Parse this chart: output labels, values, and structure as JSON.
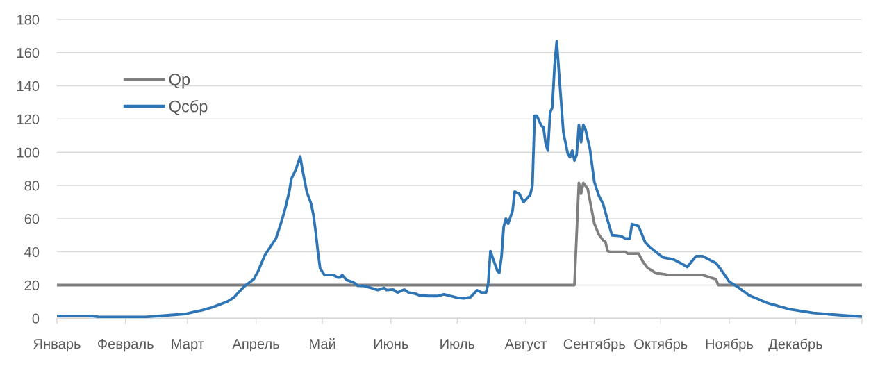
{
  "chart_data": {
    "type": "line",
    "categories": [
      "Январь",
      null,
      null,
      null,
      null,
      null,
      null,
      null,
      null,
      null,
      null,
      null,
      null,
      null,
      null,
      null,
      null,
      null,
      null,
      null,
      null,
      null,
      null,
      null,
      null,
      null,
      null,
      null,
      null,
      null,
      null,
      "Февраль",
      null,
      null,
      null,
      null,
      null,
      null,
      null,
      null,
      null,
      null,
      null,
      null,
      null,
      null,
      null,
      null,
      null,
      null,
      null,
      null,
      null,
      null,
      null,
      null,
      null,
      null,
      null,
      "Март",
      null,
      null,
      null,
      null,
      null,
      null,
      null,
      null,
      null,
      null,
      null,
      null,
      null,
      null,
      null,
      null,
      null,
      null,
      null,
      null,
      null,
      null,
      null,
      null,
      null,
      null,
      null,
      null,
      null,
      null,
      "Апрель",
      null,
      null,
      null,
      null,
      null,
      null,
      null,
      null,
      null,
      null,
      null,
      null,
      null,
      null,
      null,
      null,
      null,
      null,
      null,
      null,
      null,
      null,
      null,
      null,
      null,
      null,
      null,
      null,
      null,
      "Май",
      null,
      null,
      null,
      null,
      null,
      null,
      null,
      null,
      null,
      null,
      null,
      null,
      null,
      null,
      null,
      null,
      null,
      null,
      null,
      null,
      null,
      null,
      null,
      null,
      null,
      null,
      null,
      null,
      null,
      null,
      "Июнь",
      null,
      null,
      null,
      null,
      null,
      null,
      null,
      null,
      null,
      null,
      null,
      null,
      null,
      null,
      null,
      null,
      null,
      null,
      null,
      null,
      null,
      null,
      null,
      null,
      null,
      null,
      null,
      null,
      null,
      "Июль",
      null,
      null,
      null,
      null,
      null,
      null,
      null,
      null,
      null,
      null,
      null,
      null,
      null,
      null,
      null,
      null,
      null,
      null,
      null,
      null,
      null,
      null,
      null,
      null,
      null,
      null,
      null,
      null,
      null,
      null,
      "Август",
      null,
      null,
      null,
      null,
      null,
      null,
      null,
      null,
      null,
      null,
      null,
      null,
      null,
      null,
      null,
      null,
      null,
      null,
      null,
      null,
      null,
      null,
      null,
      null,
      null,
      null,
      null,
      null,
      null,
      null,
      "Сентябрь",
      null,
      null,
      null,
      null,
      null,
      null,
      null,
      null,
      null,
      null,
      null,
      null,
      null,
      null,
      null,
      null,
      null,
      null,
      null,
      null,
      null,
      null,
      null,
      null,
      null,
      null,
      null,
      null,
      null,
      "Октябрь",
      null,
      null,
      null,
      null,
      null,
      null,
      null,
      null,
      null,
      null,
      null,
      null,
      null,
      null,
      null,
      null,
      null,
      null,
      null,
      null,
      null,
      null,
      null,
      null,
      null,
      null,
      null,
      null,
      null,
      null,
      "Ноябрь",
      null,
      null,
      null,
      null,
      null,
      null,
      null,
      null,
      null,
      null,
      null,
      null,
      null,
      null,
      null,
      null,
      null,
      null,
      null,
      null,
      null,
      null,
      null,
      null,
      null,
      null,
      null,
      null,
      null,
      "Декабрь",
      null,
      null,
      null,
      null,
      null,
      null,
      null,
      null,
      null,
      null,
      null,
      null,
      null,
      null,
      null,
      null,
      null,
      null,
      null,
      null,
      null,
      null,
      null,
      null,
      null,
      null,
      null,
      null,
      null,
      null
    ],
    "ylim": [
      0,
      180
    ],
    "yticks": [
      0,
      20,
      40,
      60,
      80,
      100,
      120,
      140,
      160,
      180
    ],
    "grid": "y",
    "legend": "top left",
    "line_style": "solid",
    "series": [
      {
        "name": "Qр",
        "color": "#7f7f7f",
        "values": [
          20,
          20,
          20,
          20,
          20,
          20,
          20,
          20,
          20,
          20,
          20,
          20,
          20,
          20,
          20,
          20,
          20,
          20,
          20,
          20,
          20,
          20,
          20,
          20,
          20,
          20,
          20,
          20,
          20,
          20,
          20,
          20,
          20,
          20,
          20,
          20,
          20,
          20,
          20,
          20,
          20,
          20,
          20,
          20,
          20,
          20,
          20,
          20,
          20,
          20,
          20,
          20,
          20,
          20,
          20,
          20,
          20,
          20,
          20,
          20,
          20,
          20,
          20,
          20,
          20,
          20,
          20,
          20,
          20,
          20,
          20,
          20,
          20,
          20,
          20,
          20,
          20,
          20,
          20,
          20,
          20,
          20,
          20,
          20,
          20,
          20,
          20,
          20,
          20,
          20,
          20,
          20,
          20,
          20,
          20,
          20,
          20,
          20,
          20,
          20,
          20,
          20,
          20,
          20,
          20,
          20,
          20,
          20,
          20,
          20,
          20,
          20,
          20,
          20,
          20,
          20,
          20,
          20,
          20,
          20,
          20,
          20,
          20,
          20,
          20,
          20,
          20,
          20,
          20,
          20,
          20,
          20,
          20,
          20,
          20,
          20,
          20,
          20,
          20,
          20,
          20,
          20,
          20,
          20,
          20,
          20,
          20,
          20,
          20,
          20,
          20,
          20,
          20,
          20,
          20,
          20,
          20,
          20,
          20,
          20,
          20,
          20,
          20,
          20,
          20,
          20,
          20,
          20,
          20,
          20,
          20,
          20,
          20,
          20,
          20,
          20,
          20,
          20,
          20,
          20,
          20,
          20,
          20,
          20,
          20,
          20,
          20,
          20,
          20,
          20,
          20,
          20,
          20,
          20,
          20,
          20,
          20,
          20,
          20,
          20,
          20,
          20,
          20,
          20,
          20,
          20,
          20,
          20,
          20,
          20,
          20,
          20,
          20,
          20,
          20,
          20,
          20,
          20,
          20,
          20,
          20,
          20,
          20,
          20,
          20,
          20,
          20,
          20,
          20,
          20,
          20,
          20,
          20,
          20,
          20,
          50.8,
          81.5,
          75,
          81.5,
          79.8,
          78,
          71,
          64,
          57,
          53.8,
          50.5,
          48.7,
          47,
          46,
          40.5,
          40,
          40,
          40,
          40,
          40,
          40,
          40,
          40,
          39,
          39,
          39,
          39,
          39,
          39,
          36.5,
          34,
          32.3,
          30.5,
          29.6,
          28.8,
          27.9,
          27,
          26.9,
          26.8,
          26.6,
          26.5,
          26,
          26,
          26,
          26,
          26,
          26,
          26,
          26,
          26,
          26,
          26,
          26,
          26,
          26,
          26,
          26,
          26,
          25.6,
          25.2,
          24.8,
          24.3,
          23.9,
          23.5,
          20,
          20,
          20,
          20,
          20,
          20,
          20,
          20,
          20,
          20,
          20,
          20,
          20,
          20,
          20,
          20,
          20,
          20,
          20,
          20,
          20,
          20,
          20,
          20,
          20,
          20,
          20,
          20,
          20,
          20,
          20,
          20,
          20,
          20,
          20,
          20,
          20,
          20,
          20,
          20,
          20,
          20,
          20,
          20,
          20,
          20,
          20,
          20,
          20,
          20,
          20,
          20,
          20,
          20,
          20,
          20,
          20,
          20,
          20,
          20,
          20,
          20,
          20,
          20,
          20,
          20
        ]
      },
      {
        "name": "Qсбр",
        "color": "#2e75b6",
        "values": [
          1.4,
          1.4,
          1.4,
          1.4,
          1.4,
          1.4,
          1.4,
          1.4,
          1.4,
          1.4,
          1.4,
          1.4,
          1.4,
          1.4,
          1.4,
          1.4,
          1.4,
          1.2,
          1.0,
          0.8,
          0.8,
          0.8,
          0.8,
          0.8,
          0.8,
          0.8,
          0.8,
          0.8,
          0.8,
          0.8,
          0.8,
          0.8,
          0.8,
          0.8,
          0.8,
          0.8,
          0.8,
          0.8,
          0.8,
          0.8,
          0.8,
          0.9,
          1.0,
          1.1,
          1.2,
          1.3,
          1.4,
          1.5,
          1.6,
          1.7,
          1.8,
          1.9,
          2.0,
          2.1,
          2.2,
          2.3,
          2.4,
          2.5,
          2.6,
          2.9,
          3.2,
          3.5,
          3.8,
          4.1,
          4.4,
          4.7,
          5.0,
          5.4,
          5.8,
          6.1,
          6.5,
          7.0,
          7.5,
          8.0,
          8.5,
          9.0,
          9.5,
          10.0,
          10.8,
          11.7,
          12.5,
          14.0,
          15.5,
          16.8,
          18.2,
          19.5,
          20.5,
          21.5,
          22.5,
          23.5,
          26.0,
          28.5,
          31.7,
          34.8,
          38.0,
          40,
          42,
          44,
          46,
          48,
          52,
          56,
          60.5,
          65,
          70.5,
          76,
          84,
          86.8,
          89.5,
          93.5,
          97.5,
          89.5,
          82.8,
          76,
          72.4,
          68.7,
          62,
          52,
          40,
          30,
          28,
          26,
          26,
          26,
          26,
          26,
          25.3,
          24.5,
          24.5,
          26,
          24.5,
          23,
          22.6,
          22.1,
          21.7,
          20.7,
          19.6,
          19.5,
          19.5,
          19.4,
          19.0,
          18.7,
          18.3,
          17.9,
          17.4,
          17.0,
          17.4,
          17.9,
          18.3,
          17,
          17.1,
          17.2,
          17.3,
          16.4,
          15.5,
          16.1,
          16.7,
          17.3,
          16.4,
          15.5,
          15.3,
          15.0,
          14.8,
          14.3,
          13.7,
          13.6,
          13.6,
          13.5,
          13.4,
          13.4,
          13.4,
          13.4,
          13.4,
          13.7,
          14.1,
          14.4,
          14.1,
          13.7,
          13.4,
          13.1,
          12.7,
          12.4,
          12.3,
          12.1,
          12.0,
          12.2,
          12.5,
          12.7,
          14.1,
          15.5,
          16.9,
          16.2,
          15.5,
          15.5,
          15.5,
          21,
          40.4,
          36.6,
          32.8,
          29,
          27.2,
          36.9,
          55,
          60,
          57,
          60.8,
          64.6,
          76.3,
          75.7,
          75,
          72.5,
          70,
          71.4,
          72.9,
          74.3,
          80,
          122,
          122,
          119,
          116,
          115,
          105,
          101,
          124,
          127,
          152,
          167,
          148,
          130,
          112,
          105.5,
          99,
          97,
          101,
          95,
          98.5,
          116.5,
          106,
          116.5,
          113.7,
          107.9,
          102,
          92,
          82,
          78,
          74,
          71.4,
          68.7,
          63.9,
          59,
          54.5,
          50,
          49.9,
          49.8,
          49.6,
          49.5,
          48.8,
          48,
          48,
          48,
          56.7,
          56.3,
          55.9,
          55.5,
          52.2,
          49.0,
          45.7,
          44.4,
          43,
          41.9,
          40.8,
          39.8,
          38.7,
          37.7,
          36.7,
          36.4,
          36.1,
          35.9,
          35.6,
          35.3,
          34.6,
          33.9,
          33.2,
          32.5,
          31.7,
          30.9,
          32.5,
          34.2,
          35.8,
          37.4,
          37.4,
          37.4,
          37.4,
          36.7,
          36.0,
          35.3,
          34.6,
          33.9,
          33.2,
          31.5,
          29.8,
          27.9,
          25.9,
          24.0,
          22,
          21.2,
          20.4,
          19.5,
          18.7,
          17.7,
          16.7,
          15.8,
          14.8,
          13.8,
          13.2,
          12.7,
          12.1,
          11.6,
          11.0,
          10.4,
          9.9,
          9.3,
          8.9,
          8.5,
          8.2,
          7.8,
          7.4,
          7.0,
          6.6,
          6.3,
          5.9,
          5.5,
          5.3,
          5.1,
          4.9,
          4.7,
          4.5,
          4.2,
          4.0,
          3.8,
          3.6,
          3.4,
          3.2,
          3.1,
          3.0,
          2.9,
          2.8,
          2.7,
          2.6,
          2.4,
          2.3,
          2.2,
          2.1,
          2.0,
          1.9,
          1.8,
          1.7,
          1.6,
          1.5,
          1.5,
          1.4,
          1.3,
          1.2,
          1.1,
          1.0
        ]
      }
    ]
  }
}
